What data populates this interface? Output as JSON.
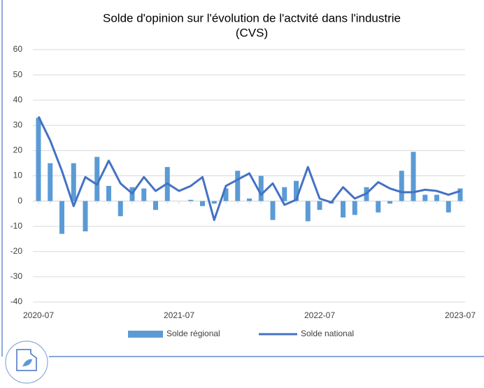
{
  "chart_data": {
    "type": "bar_line",
    "title": [
      "Solde d'opinion sur l'évolution de l'actvité dans l'industrie",
      "(CVS)"
    ],
    "categories": [
      "2020-07",
      null,
      null,
      null,
      null,
      null,
      null,
      null,
      null,
      null,
      null,
      null,
      "2021-07",
      null,
      null,
      null,
      null,
      null,
      null,
      null,
      null,
      null,
      null,
      null,
      "2022-07",
      null,
      null,
      null,
      null,
      null,
      null,
      null,
      null,
      null,
      null,
      null,
      "2023-07"
    ],
    "series": [
      {
        "name": "Solde régional",
        "type": "bar",
        "color": "#5b9bd5",
        "values": [
          33,
          15,
          -13,
          15,
          -12,
          17.5,
          6,
          -6,
          5.5,
          5,
          -3.5,
          13.5,
          0,
          0.5,
          -2,
          -1,
          5,
          12,
          1,
          10,
          -7.5,
          5.5,
          8,
          -8,
          -3.5,
          -1,
          -6.5,
          -5.5,
          5.5,
          -4.5,
          -1,
          12,
          19.5,
          2.5,
          2.5,
          -4.5,
          5
        ]
      },
      {
        "name": "Solde national",
        "type": "line",
        "color": "#4472c4",
        "values": [
          33.5,
          24,
          12,
          -2,
          9.5,
          6.5,
          16,
          7,
          3,
          9.5,
          4,
          7,
          4,
          6,
          9.5,
          -7.5,
          6,
          8.5,
          11,
          2.5,
          7,
          -1.5,
          0.5,
          13.5,
          1,
          -0.5,
          5.5,
          1,
          3,
          7.5,
          5,
          3.5,
          3.5,
          4.5,
          4,
          2.5,
          4
        ]
      }
    ],
    "ylim": [
      -40,
      60
    ],
    "yticks": [
      -40,
      -30,
      -20,
      -10,
      0,
      10,
      20,
      30,
      40,
      50,
      60
    ],
    "grid": true,
    "legend": "bottom"
  }
}
